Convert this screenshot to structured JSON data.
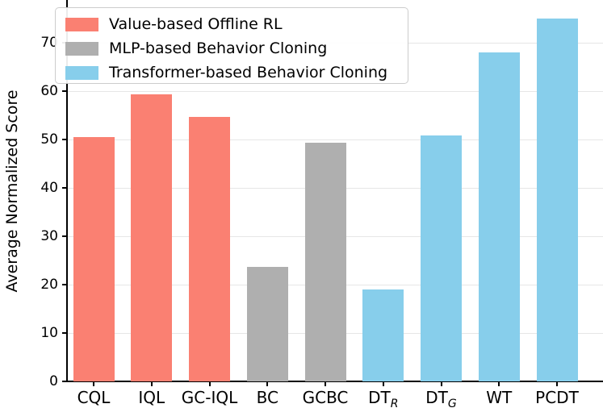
{
  "chart_data": {
    "type": "bar",
    "title": "",
    "xlabel": "",
    "ylabel": "Average Normalized Score",
    "categories": [
      "CQL",
      "IQL",
      "GC-IQL",
      "BC",
      "GCBC",
      "DT_R",
      "DT_G",
      "WT",
      "PCDT"
    ],
    "values": [
      50.5,
      59.4,
      54.6,
      23.7,
      49.3,
      19.0,
      50.8,
      68.0,
      75.0
    ],
    "series": [
      {
        "name": "Value-based Offline RL",
        "categories": [
          "CQL",
          "IQL",
          "GC-IQL"
        ],
        "values": [
          50.5,
          59.4,
          54.6
        ]
      },
      {
        "name": "MLP-based Behavior Cloning",
        "categories": [
          "BC",
          "GCBC"
        ],
        "values": [
          23.7,
          49.3
        ]
      },
      {
        "name": "Transformer-based Behavior Cloning",
        "categories": [
          "DT_R",
          "DT_G",
          "WT",
          "PCDT"
        ],
        "values": [
          19.0,
          50.8,
          68.0,
          75.0
        ]
      }
    ],
    "bar_colors": [
      "#FA8072",
      "#FA8072",
      "#FA8072",
      "#AFAFAF",
      "#AFAFAF",
      "#87CEEB",
      "#87CEEB",
      "#87CEEB",
      "#87CEEB"
    ],
    "yticks": [
      0,
      10,
      20,
      30,
      40,
      50,
      60,
      70
    ],
    "ylim": [
      0,
      78.8
    ],
    "grid": "horizontal",
    "legend_position": "upper-left",
    "legend": [
      {
        "label": "Value-based Offline RL",
        "color": "#FA8072"
      },
      {
        "label": "MLP-based Behavior Cloning",
        "color": "#AFAFAF"
      },
      {
        "label": "Transformer-based Behavior Cloning",
        "color": "#87CEEB"
      }
    ],
    "colors": {
      "grid": "#E6E6E6",
      "axis": "#000000",
      "text": "#000000",
      "background": "#FFFFFF"
    }
  }
}
